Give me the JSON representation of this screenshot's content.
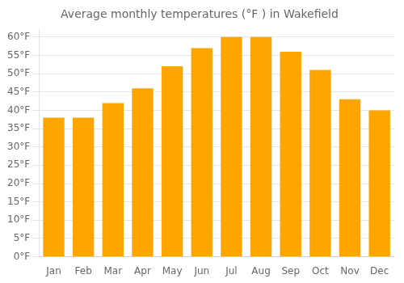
{
  "chart_data": {
    "type": "bar",
    "title": "Average monthly temperatures (°F ) in Wakefield",
    "categories": [
      "Jan",
      "Feb",
      "Mar",
      "Apr",
      "May",
      "Jun",
      "Jul",
      "Aug",
      "Sep",
      "Oct",
      "Nov",
      "Dec"
    ],
    "values": [
      38,
      38,
      42,
      46,
      52,
      57,
      60,
      60,
      56,
      51,
      43,
      40
    ],
    "color": "#FFA500",
    "ylim": [
      0,
      62
    ],
    "yticks": [
      {
        "value": 0,
        "label": "0°F"
      },
      {
        "value": 5,
        "label": "5°F"
      },
      {
        "value": 10,
        "label": "10°F"
      },
      {
        "value": 15,
        "label": "15°F"
      },
      {
        "value": 20,
        "label": "20°F"
      },
      {
        "value": 25,
        "label": "25°F"
      },
      {
        "value": 30,
        "label": "30°F"
      },
      {
        "value": 35,
        "label": "35°F"
      },
      {
        "value": 40,
        "label": "40°F"
      },
      {
        "value": 45,
        "label": "45°F"
      },
      {
        "value": 50,
        "label": "50°F"
      },
      {
        "value": 55,
        "label": "55°F"
      },
      {
        "value": 60,
        "label": "60°F"
      }
    ],
    "grid": true
  }
}
